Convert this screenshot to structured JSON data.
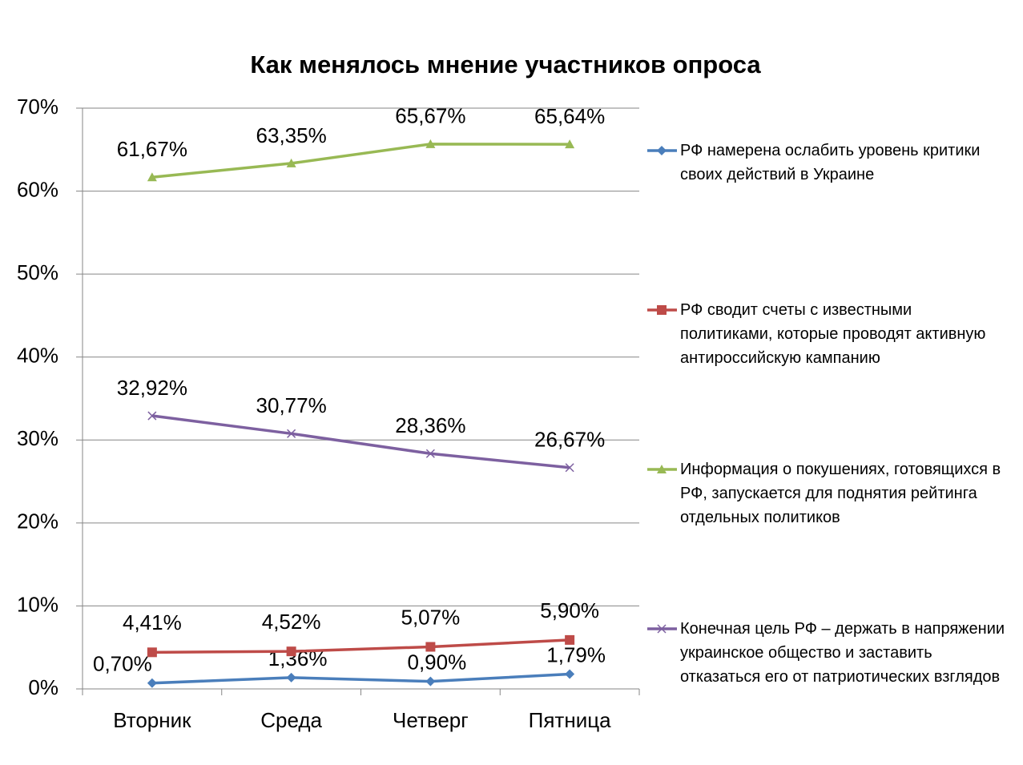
{
  "chart_data": {
    "type": "line",
    "title": "Как менялось мнение участников опроса",
    "categories": [
      "Вторник",
      "Среда",
      "Четверг",
      "Пятница"
    ],
    "ylim": [
      0,
      70
    ],
    "yticks": [
      {
        "value": 0,
        "label": "0%"
      },
      {
        "value": 10,
        "label": "10%"
      },
      {
        "value": 20,
        "label": "20%"
      },
      {
        "value": 30,
        "label": "30%"
      },
      {
        "value": 40,
        "label": "40%"
      },
      {
        "value": 50,
        "label": "50%"
      },
      {
        "value": 60,
        "label": "60%"
      },
      {
        "value": 70,
        "label": "70%"
      }
    ],
    "grid": true,
    "legend": "right",
    "series": [
      {
        "name": "РФ намерена ослабить уровень критики своих действий в Украине",
        "color": "#4a7ebb",
        "marker": "diamond",
        "values": [
          0.7,
          1.36,
          0.9,
          1.79
        ],
        "value_labels": [
          "0,70%",
          "1,36%",
          "0,90%",
          "1,79%"
        ]
      },
      {
        "name": "РФ сводит счеты с известными политиками, которые проводят активную антироссийскую кампанию",
        "color": "#be4b48",
        "marker": "square",
        "values": [
          4.41,
          4.52,
          5.07,
          5.9
        ],
        "value_labels": [
          "4,41%",
          "4,52%",
          "5,07%",
          "5,90%"
        ]
      },
      {
        "name": "Информация о покушениях, готовящихся в РФ, запускается для поднятия рейтинга отдельных политиков",
        "color": "#98b954",
        "marker": "triangle",
        "values": [
          61.67,
          63.35,
          65.67,
          65.64
        ],
        "value_labels": [
          "61,67%",
          "63,35%",
          "65,67%",
          "65,64%"
        ]
      },
      {
        "name": "Конечная цель РФ – держать в напряжении украинское общество и заставить отказаться его от патриотических взглядов",
        "color": "#7d60a0",
        "marker": "x",
        "values": [
          32.92,
          30.77,
          28.36,
          26.67
        ],
        "value_labels": [
          "32,92%",
          "30,77%",
          "28,36%",
          "26,67%"
        ]
      }
    ]
  }
}
